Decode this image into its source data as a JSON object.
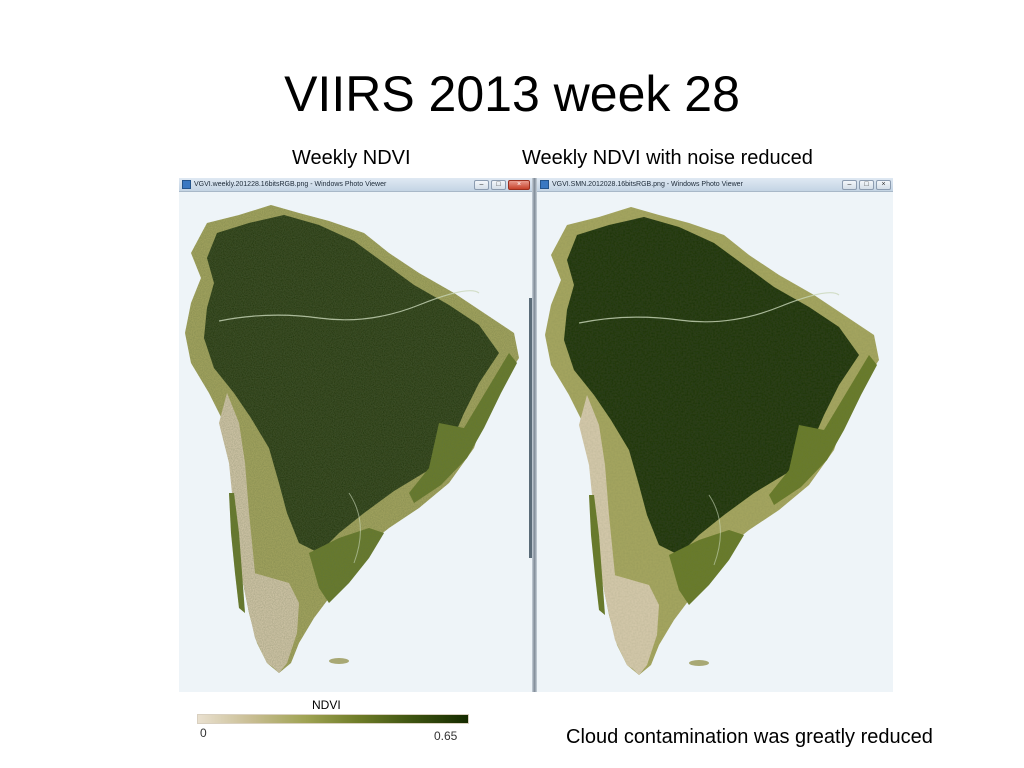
{
  "slide": {
    "title": "VIIRS 2013 week 28",
    "caption_left": "Weekly NDVI",
    "caption_right": "Weekly NDVI with noise reduced",
    "note": "Cloud contamination was greatly reduced"
  },
  "viewers": [
    {
      "window_title": "VGVI.weekly.201228.16bitsRGB.png - Windows Photo Viewer",
      "minimize_glyph": "–",
      "maximize_glyph": "□",
      "close_glyph": "×",
      "noise": "high"
    },
    {
      "window_title": "VGVI.SMN.2012028.16bitsRGB.png - Windows Photo Viewer",
      "minimize_glyph": "–",
      "maximize_glyph": "□",
      "close_glyph": "×",
      "noise": "low"
    }
  ],
  "legend": {
    "title": "NDVI",
    "min_label": "0",
    "max_label": "0.65",
    "colors": [
      "#e9e0cf",
      "#c8bd92",
      "#9fa353",
      "#6d7b27",
      "#3c5210",
      "#152b00"
    ]
  },
  "colors": {
    "ocean": "#eef4f8",
    "desert": "#d8ccae",
    "dry": "#a8a862",
    "mid": "#6b7d2c",
    "forest": "#2b4510",
    "dense_forest": "#1b3106"
  }
}
